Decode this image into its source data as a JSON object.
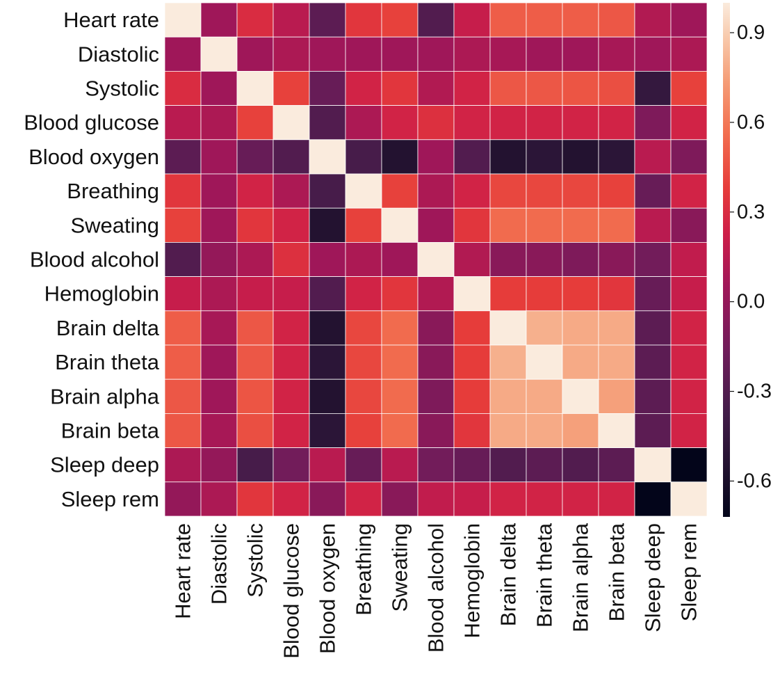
{
  "chart_data": {
    "type": "heatmap",
    "title": "",
    "xlabel": "",
    "ylabel": "",
    "labels": [
      "Heart rate",
      "Diastolic",
      "Systolic",
      "Blood glucose",
      "Blood oxygen",
      "Breathing",
      "Sweating",
      "Blood alcohol",
      "Hemoglobin",
      "Brain delta",
      "Brain theta",
      "Brain alpha",
      "Brain beta",
      "Sleep deep",
      "Sleep rem"
    ],
    "matrix": [
      [
        1.0,
        0.05,
        0.3,
        0.15,
        -0.25,
        0.35,
        0.4,
        -0.3,
        0.2,
        0.5,
        0.5,
        0.5,
        0.48,
        0.12,
        0.05
      ],
      [
        0.05,
        1.0,
        0.05,
        0.1,
        0.05,
        0.05,
        0.05,
        0.05,
        0.1,
        0.08,
        0.05,
        0.05,
        0.08,
        0.05,
        0.1
      ],
      [
        0.3,
        0.05,
        1.0,
        0.4,
        -0.2,
        0.25,
        0.35,
        0.12,
        0.25,
        0.48,
        0.48,
        0.47,
        0.45,
        -0.45,
        0.4
      ],
      [
        0.15,
        0.1,
        0.4,
        1.0,
        -0.3,
        0.1,
        0.25,
        0.32,
        0.25,
        0.25,
        0.25,
        0.25,
        0.25,
        -0.1,
        0.25
      ],
      [
        -0.25,
        0.05,
        -0.2,
        -0.3,
        1.0,
        -0.35,
        -0.55,
        0.05,
        -0.3,
        -0.55,
        -0.5,
        -0.55,
        -0.5,
        0.15,
        -0.1
      ],
      [
        0.35,
        0.05,
        0.25,
        0.1,
        -0.35,
        1.0,
        0.4,
        0.1,
        0.25,
        0.42,
        0.42,
        0.42,
        0.4,
        -0.2,
        0.25
      ],
      [
        0.4,
        0.05,
        0.35,
        0.25,
        -0.55,
        0.4,
        1.0,
        0.05,
        0.35,
        0.55,
        0.55,
        0.55,
        0.55,
        0.15,
        -0.05
      ],
      [
        -0.3,
        0.0,
        0.1,
        0.32,
        0.05,
        0.1,
        0.05,
        1.0,
        0.12,
        -0.05,
        -0.05,
        -0.1,
        -0.05,
        -0.15,
        0.18
      ],
      [
        0.2,
        0.1,
        0.2,
        0.2,
        -0.3,
        0.25,
        0.35,
        0.12,
        1.0,
        0.38,
        0.38,
        0.38,
        0.35,
        -0.2,
        0.2
      ],
      [
        0.5,
        0.08,
        0.48,
        0.25,
        -0.55,
        0.42,
        0.55,
        -0.05,
        0.38,
        1.0,
        0.8,
        0.78,
        0.78,
        -0.25,
        0.25
      ],
      [
        0.5,
        0.05,
        0.48,
        0.25,
        -0.5,
        0.42,
        0.55,
        -0.05,
        0.38,
        0.8,
        1.0,
        0.78,
        0.78,
        -0.25,
        0.25
      ],
      [
        0.48,
        0.05,
        0.47,
        0.25,
        -0.55,
        0.42,
        0.55,
        -0.1,
        0.38,
        0.78,
        0.78,
        1.0,
        0.75,
        -0.25,
        0.25
      ],
      [
        0.48,
        0.08,
        0.45,
        0.25,
        -0.5,
        0.4,
        0.55,
        -0.05,
        0.35,
        0.78,
        0.78,
        0.75,
        1.0,
        -0.25,
        0.25
      ],
      [
        0.1,
        0.0,
        -0.35,
        -0.15,
        0.15,
        -0.2,
        0.15,
        -0.15,
        -0.2,
        -0.3,
        -0.25,
        -0.3,
        -0.25,
        1.0,
        -0.72
      ],
      [
        0.0,
        0.1,
        0.35,
        0.25,
        -0.05,
        0.25,
        -0.05,
        0.18,
        0.2,
        0.25,
        0.25,
        0.25,
        0.25,
        -0.72,
        1.0
      ]
    ],
    "colorbar": {
      "range": [
        -0.72,
        1.0
      ],
      "ticks": [
        0.9,
        0.6,
        0.3,
        0.0,
        -0.3,
        -0.6
      ],
      "tick_labels": [
        "0.9",
        "0.6",
        "0.3",
        "0.0",
        "-0.3",
        "-0.6"
      ]
    },
    "colormap": "rocket",
    "grid": true
  }
}
